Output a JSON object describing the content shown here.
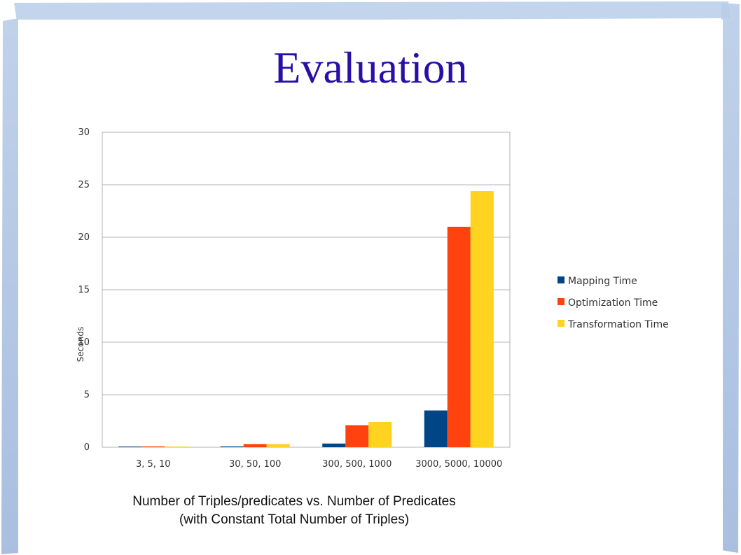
{
  "slide": {
    "title": "Evaluation",
    "caption_line1": "Number of Triples/predicates vs. Number of Predicates",
    "caption_line2": "(with Constant Total Number of Triples)"
  },
  "chart_data": {
    "type": "bar",
    "title": "",
    "xlabel": "",
    "ylabel": "Seconds",
    "ylim": [
      0,
      30
    ],
    "yticks": [
      0,
      5,
      10,
      15,
      20,
      25,
      30
    ],
    "grid": true,
    "legend_position": "right",
    "categories": [
      "3, 5, 10",
      "30, 50, 100",
      "300, 500, 1000",
      "3000, 5000, 10000"
    ],
    "series": [
      {
        "name": "Mapping Time",
        "color": "#004586",
        "values": [
          0.05,
          0.08,
          0.35,
          3.5
        ]
      },
      {
        "name": "Optimization Time",
        "color": "#ff420e",
        "values": [
          0.08,
          0.3,
          2.1,
          21.0
        ]
      },
      {
        "name": "Transformation Time",
        "color": "#ffd320",
        "values": [
          0.06,
          0.3,
          2.4,
          24.4
        ]
      }
    ]
  }
}
